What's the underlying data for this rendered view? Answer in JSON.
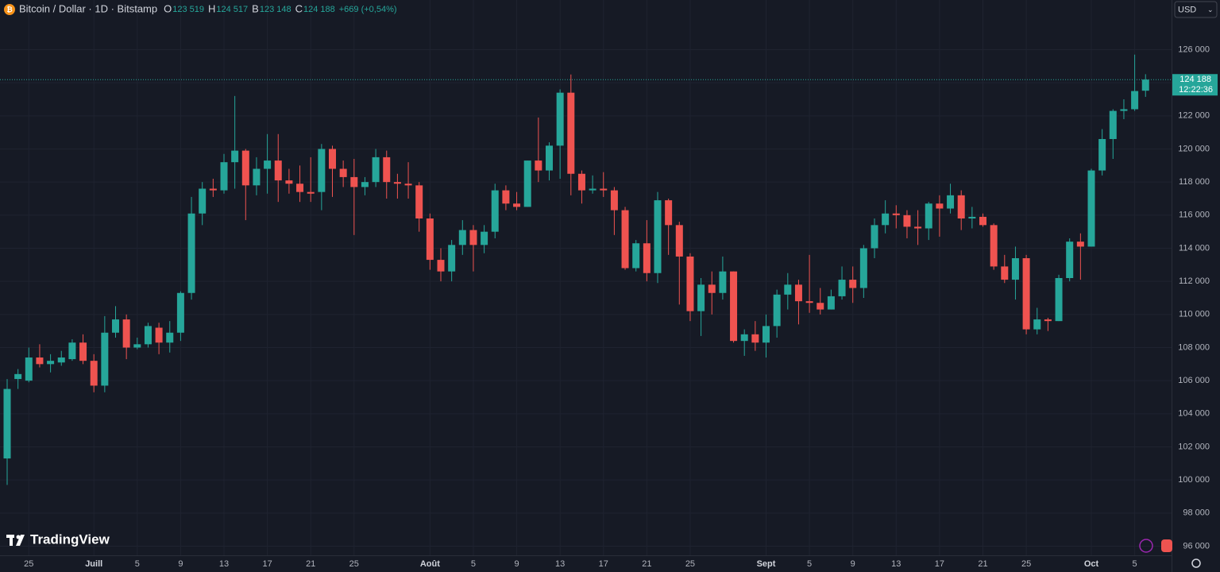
{
  "header": {
    "title": "Bitcoin / Dollar · 1D · Bitstamp",
    "ohlc": [
      {
        "label": "O",
        "value": "123 519"
      },
      {
        "label": "H",
        "value": "124 517"
      },
      {
        "label": "B",
        "value": "123 148"
      },
      {
        "label": "C",
        "value": "124 188"
      }
    ],
    "change": "+669 (+0,54%)",
    "currency": "USD",
    "logo": "TradingView"
  },
  "chart_data": {
    "type": "candlestick",
    "up_color": "#26a69a",
    "down_color": "#ef5350",
    "grid": true,
    "last_price_label": "124 188",
    "countdown": "12:22:36",
    "categories": [
      null,
      null,
      "25",
      null,
      null,
      null,
      null,
      null,
      "Juill",
      null,
      null,
      null,
      "5",
      null,
      null,
      null,
      "9",
      null,
      null,
      null,
      "13",
      null,
      null,
      null,
      "17",
      null,
      null,
      null,
      "21",
      null,
      null,
      null,
      "25",
      null,
      null,
      null,
      null,
      null,
      null,
      "Août",
      null,
      null,
      null,
      "5",
      null,
      null,
      null,
      "9",
      null,
      null,
      null,
      "13",
      null,
      null,
      null,
      "17",
      null,
      null,
      null,
      "21",
      null,
      null,
      null,
      "25",
      null,
      null,
      null,
      null,
      null,
      null,
      "Sept",
      null,
      null,
      null,
      "5",
      null,
      null,
      null,
      "9",
      null,
      null,
      null,
      "13",
      null,
      null,
      null,
      "17",
      null,
      null,
      null,
      "21",
      null,
      null,
      null,
      "25",
      null,
      null,
      null,
      null,
      null,
      "Oct",
      null,
      null,
      null,
      "5",
      null
    ],
    "open": [
      101300,
      106100,
      106000,
      107400,
      107000,
      107100,
      107300,
      108300,
      107200,
      105700,
      108900,
      109700,
      108000,
      108200,
      109200,
      108300,
      108900,
      111300,
      116100,
      117600,
      117500,
      119200,
      119900,
      117800,
      118800,
      119300,
      118100,
      117900,
      117400,
      117400,
      120000,
      118800,
      118300,
      117700,
      118000,
      119500,
      118000,
      117900,
      117800,
      115800,
      113300,
      112600,
      114200,
      115100,
      114200,
      115000,
      117500,
      116700,
      116500,
      119300,
      118700,
      120200,
      123400,
      118500,
      117500,
      117600,
      117500,
      116300,
      112800,
      114300,
      112500,
      116900,
      115400,
      113500,
      110200,
      111800,
      111300,
      112600,
      108400,
      108800,
      108300,
      109300,
      111200,
      111800,
      110800,
      110700,
      110300,
      111100,
      112100,
      111600,
      114000,
      115400,
      116100,
      116000,
      115300,
      115200,
      116700,
      116400,
      117200,
      115800,
      115900,
      115400,
      112900,
      112100,
      113400,
      109100,
      109700,
      109600,
      112200,
      114400,
      114100,
      118700,
      120600,
      122300,
      122400,
      123519
    ],
    "high": [
      106100,
      106700,
      108000,
      108200,
      107600,
      107800,
      108500,
      108800,
      107600,
      109900,
      110500,
      110000,
      108600,
      109500,
      109500,
      109600,
      111400,
      117100,
      118000,
      118200,
      119700,
      123200,
      120000,
      119500,
      120900,
      120900,
      118800,
      119000,
      119500,
      120300,
      120200,
      119300,
      119400,
      118300,
      120000,
      119900,
      118500,
      119200,
      118000,
      116100,
      114000,
      114500,
      115700,
      115400,
      115400,
      117900,
      117800,
      117400,
      119300,
      121900,
      120400,
      123600,
      124500,
      118700,
      118400,
      118600,
      117700,
      116500,
      114500,
      115700,
      117400,
      117000,
      115600,
      113700,
      112200,
      112600,
      113500,
      112600,
      109100,
      109600,
      110000,
      111500,
      112500,
      112100,
      113600,
      111600,
      111500,
      112900,
      112900,
      114200,
      115800,
      116900,
      116600,
      116300,
      116300,
      116800,
      117200,
      117900,
      117500,
      116500,
      116100,
      115500,
      113600,
      114100,
      113600,
      110400,
      109800,
      112400,
      114600,
      114900,
      118800,
      121200,
      122400,
      123000,
      125700,
      124517
    ],
    "low": [
      99700,
      105500,
      105900,
      106800,
      106500,
      106900,
      107200,
      107000,
      105300,
      105300,
      108600,
      107300,
      107900,
      108000,
      107600,
      107700,
      108400,
      110900,
      115400,
      117100,
      117300,
      117600,
      115700,
      117200,
      117300,
      116800,
      117300,
      116800,
      116800,
      116300,
      117100,
      117700,
      114800,
      117200,
      117700,
      117000,
      117000,
      117000,
      115000,
      112700,
      112000,
      112000,
      113600,
      112600,
      113700,
      114600,
      116300,
      116300,
      116500,
      118000,
      118100,
      118200,
      117200,
      116700,
      117300,
      117100,
      114800,
      112700,
      112600,
      112000,
      111900,
      113600,
      110600,
      109600,
      108700,
      110000,
      110900,
      108300,
      107500,
      107800,
      107400,
      108600,
      110300,
      109400,
      110100,
      110000,
      110300,
      110900,
      110700,
      111000,
      113400,
      114900,
      115200,
      114600,
      114200,
      114500,
      114700,
      116100,
      115100,
      115200,
      115300,
      112700,
      111900,
      110900,
      108800,
      108800,
      109000,
      109600,
      112000,
      112100,
      114100,
      118400,
      119400,
      121800,
      122300,
      123148
    ],
    "close": [
      105500,
      106400,
      107400,
      107000,
      107200,
      107400,
      108300,
      107200,
      105700,
      108900,
      109700,
      108000,
      108200,
      109300,
      108300,
      108900,
      111300,
      116100,
      117600,
      117500,
      119200,
      119900,
      117800,
      118800,
      119300,
      118100,
      117900,
      117400,
      117300,
      120000,
      118800,
      118300,
      117700,
      118000,
      119500,
      118000,
      117900,
      117800,
      115800,
      113300,
      112600,
      114200,
      115100,
      114200,
      115000,
      117500,
      116700,
      116500,
      119300,
      118700,
      120200,
      123400,
      118500,
      117500,
      117600,
      117500,
      116300,
      112800,
      114300,
      112500,
      116900,
      115400,
      113500,
      110200,
      111800,
      111300,
      112600,
      108400,
      108800,
      108300,
      109300,
      111200,
      111800,
      110800,
      110700,
      110300,
      111100,
      112100,
      111600,
      114000,
      115400,
      116100,
      116000,
      115300,
      115200,
      116700,
      116400,
      117200,
      115800,
      115900,
      115400,
      112900,
      112100,
      113400,
      109100,
      109700,
      109600,
      112200,
      114400,
      114100,
      118700,
      120600,
      122300,
      122400,
      123500,
      124188
    ],
    "ylim": [
      95400,
      129000
    ],
    "yticks": [
      {
        "value": 96000,
        "label": "96 000"
      },
      {
        "value": 98000,
        "label": "98 000"
      },
      {
        "value": 100000,
        "label": "100 000"
      },
      {
        "value": 102000,
        "label": "102 000"
      },
      {
        "value": 104000,
        "label": "104 000"
      },
      {
        "value": 106000,
        "label": "106 000"
      },
      {
        "value": 108000,
        "label": "108 000"
      },
      {
        "value": 110000,
        "label": "110 000"
      },
      {
        "value": 112000,
        "label": "112 000"
      },
      {
        "value": 114000,
        "label": "114 000"
      },
      {
        "value": 116000,
        "label": "116 000"
      },
      {
        "value": 118000,
        "label": "118 000"
      },
      {
        "value": 120000,
        "label": "120 000"
      },
      {
        "value": 122000,
        "label": "122 000"
      },
      {
        "value": 124000,
        "label": "124 000"
      },
      {
        "value": 126000,
        "label": "126 000"
      }
    ]
  }
}
